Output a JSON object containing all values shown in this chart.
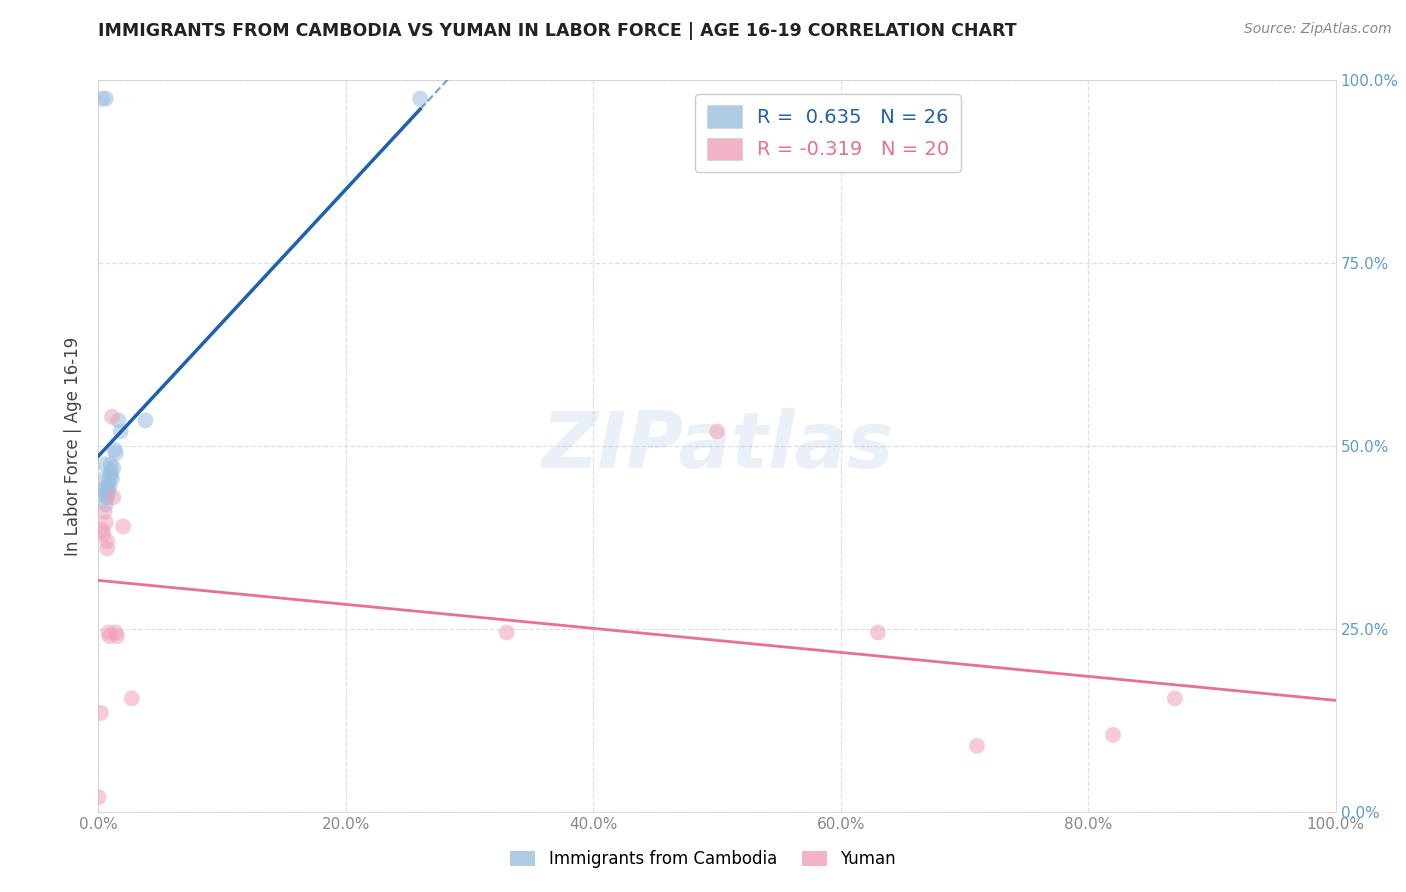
{
  "title": "IMMIGRANTS FROM CAMBODIA VS YUMAN IN LABOR FORCE | AGE 16-19 CORRELATION CHART",
  "source": "Source: ZipAtlas.com",
  "ylabel": "In Labor Force | Age 16-19",
  "xlim": [
    0.0,
    1.0
  ],
  "ylim": [
    0.0,
    1.0
  ],
  "xticks": [
    0.0,
    0.2,
    0.4,
    0.6,
    0.8,
    1.0
  ],
  "yticks": [
    0.0,
    0.25,
    0.5,
    0.75,
    1.0
  ],
  "background_color": "#ffffff",
  "cambodia_color": "#9bbfe0",
  "yuman_color": "#f0a0b8",
  "cambodia_line_color": "#2060b0",
  "yuman_line_color": "#e87090",
  "cambodia_points": [
    [
      0.003,
      0.975
    ],
    [
      0.006,
      0.975
    ],
    [
      0.004,
      0.44
    ],
    [
      0.005,
      0.475
    ],
    [
      0.005,
      0.455
    ],
    [
      0.006,
      0.435
    ],
    [
      0.006,
      0.43
    ],
    [
      0.006,
      0.42
    ],
    [
      0.007,
      0.445
    ],
    [
      0.007,
      0.44
    ],
    [
      0.007,
      0.43
    ],
    [
      0.008,
      0.44
    ],
    [
      0.008,
      0.435
    ],
    [
      0.009,
      0.455
    ],
    [
      0.009,
      0.445
    ],
    [
      0.01,
      0.475
    ],
    [
      0.01,
      0.465
    ],
    [
      0.01,
      0.46
    ],
    [
      0.011,
      0.455
    ],
    [
      0.012,
      0.47
    ],
    [
      0.013,
      0.495
    ],
    [
      0.014,
      0.49
    ],
    [
      0.016,
      0.535
    ],
    [
      0.018,
      0.52
    ],
    [
      0.038,
      0.535
    ],
    [
      0.26,
      0.975
    ]
  ],
  "yuman_points": [
    [
      0.0,
      0.02
    ],
    [
      0.002,
      0.135
    ],
    [
      0.003,
      0.385
    ],
    [
      0.004,
      0.38
    ],
    [
      0.005,
      0.41
    ],
    [
      0.006,
      0.395
    ],
    [
      0.007,
      0.36
    ],
    [
      0.007,
      0.37
    ],
    [
      0.008,
      0.245
    ],
    [
      0.009,
      0.24
    ],
    [
      0.011,
      0.54
    ],
    [
      0.012,
      0.43
    ],
    [
      0.014,
      0.245
    ],
    [
      0.015,
      0.24
    ],
    [
      0.02,
      0.39
    ],
    [
      0.027,
      0.155
    ],
    [
      0.33,
      0.245
    ],
    [
      0.5,
      0.52
    ],
    [
      0.63,
      0.245
    ],
    [
      0.71,
      0.09
    ],
    [
      0.82,
      0.105
    ],
    [
      0.87,
      0.155
    ]
  ],
  "grid_color": "#dde0ea",
  "marker_size": 130,
  "marker_alpha": 0.55,
  "marker_linewidth": 1.5
}
